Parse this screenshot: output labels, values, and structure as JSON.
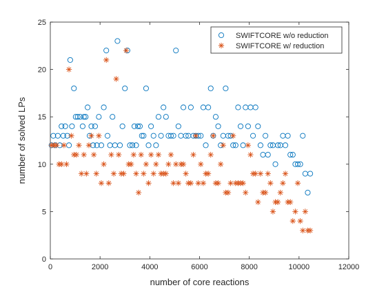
{
  "chart_data": {
    "type": "scatter",
    "title": "",
    "xlabel": "number of core reactions",
    "ylabel": "number of solved LPs",
    "xlim": [
      0,
      12000
    ],
    "ylim": [
      0,
      25
    ],
    "xticks": [
      "0",
      "2000",
      "4000",
      "6000",
      "8000",
      "10000",
      "12000"
    ],
    "yticks": [
      "0",
      "5",
      "10",
      "15",
      "20",
      "25"
    ],
    "grid": false,
    "legend_position": "top-right",
    "series": [
      {
        "name": "SWIFTCORE w/o reduction",
        "marker": "circle",
        "color": "#0072BD",
        "points": [
          [
            50,
            12
          ],
          [
            120,
            13
          ],
          [
            200,
            12
          ],
          [
            300,
            13
          ],
          [
            380,
            12
          ],
          [
            450,
            14
          ],
          [
            520,
            13
          ],
          [
            600,
            14
          ],
          [
            680,
            13
          ],
          [
            750,
            12
          ],
          [
            800,
            21
          ],
          [
            870,
            14
          ],
          [
            950,
            18
          ],
          [
            1020,
            15
          ],
          [
            1100,
            15
          ],
          [
            1200,
            15
          ],
          [
            1300,
            14
          ],
          [
            1350,
            15
          ],
          [
            1420,
            15
          ],
          [
            1500,
            16
          ],
          [
            1580,
            13
          ],
          [
            1650,
            14
          ],
          [
            1720,
            12
          ],
          [
            1800,
            14
          ],
          [
            1870,
            12
          ],
          [
            1950,
            15
          ],
          [
            2050,
            12
          ],
          [
            2150,
            16
          ],
          [
            2250,
            22
          ],
          [
            2300,
            13
          ],
          [
            2400,
            12
          ],
          [
            2500,
            15
          ],
          [
            2600,
            12
          ],
          [
            2700,
            23
          ],
          [
            2800,
            12
          ],
          [
            2900,
            14
          ],
          [
            3000,
            18
          ],
          [
            3100,
            22
          ],
          [
            3200,
            12
          ],
          [
            3300,
            12
          ],
          [
            3380,
            14
          ],
          [
            3450,
            12
          ],
          [
            3520,
            14
          ],
          [
            3600,
            14
          ],
          [
            3680,
            13
          ],
          [
            3750,
            13
          ],
          [
            3850,
            18
          ],
          [
            3950,
            12
          ],
          [
            4050,
            14
          ],
          [
            4150,
            13
          ],
          [
            4250,
            12
          ],
          [
            4350,
            15
          ],
          [
            4450,
            13
          ],
          [
            4550,
            16
          ],
          [
            4650,
            15
          ],
          [
            4750,
            13
          ],
          [
            4850,
            13
          ],
          [
            4950,
            13
          ],
          [
            5050,
            22
          ],
          [
            5150,
            14
          ],
          [
            5250,
            13
          ],
          [
            5350,
            16
          ],
          [
            5450,
            13
          ],
          [
            5550,
            13
          ],
          [
            5650,
            16
          ],
          [
            5750,
            13
          ],
          [
            5850,
            13
          ],
          [
            5950,
            13
          ],
          [
            6050,
            13
          ],
          [
            6150,
            16
          ],
          [
            6250,
            12
          ],
          [
            6350,
            16
          ],
          [
            6450,
            18
          ],
          [
            6550,
            13
          ],
          [
            6650,
            15
          ],
          [
            6750,
            14
          ],
          [
            6850,
            12
          ],
          [
            6950,
            13
          ],
          [
            7050,
            18
          ],
          [
            7150,
            13
          ],
          [
            7250,
            13
          ],
          [
            7350,
            12
          ],
          [
            7450,
            12
          ],
          [
            7550,
            16
          ],
          [
            7650,
            14
          ],
          [
            7750,
            12
          ],
          [
            7850,
            16
          ],
          [
            7950,
            14
          ],
          [
            8050,
            16
          ],
          [
            8150,
            13
          ],
          [
            8250,
            16
          ],
          [
            8350,
            14
          ],
          [
            8450,
            12
          ],
          [
            8550,
            11
          ],
          [
            8650,
            13
          ],
          [
            8750,
            11
          ],
          [
            8850,
            12
          ],
          [
            8950,
            12
          ],
          [
            9050,
            10
          ],
          [
            9150,
            12
          ],
          [
            9250,
            12
          ],
          [
            9350,
            13
          ],
          [
            9450,
            12
          ],
          [
            9550,
            13
          ],
          [
            9650,
            11
          ],
          [
            9750,
            11
          ],
          [
            9850,
            10
          ],
          [
            9950,
            10
          ],
          [
            10050,
            10
          ],
          [
            10150,
            13
          ],
          [
            10250,
            9
          ],
          [
            10350,
            7
          ],
          [
            10450,
            9
          ]
        ]
      },
      {
        "name": "SWIFTCORE w/ reduction",
        "marker": "asterisk",
        "color": "#D95319",
        "points": [
          [
            50,
            12
          ],
          [
            150,
            12
          ],
          [
            250,
            12
          ],
          [
            350,
            10
          ],
          [
            450,
            10
          ],
          [
            550,
            12
          ],
          [
            650,
            10
          ],
          [
            750,
            20
          ],
          [
            850,
            13
          ],
          [
            950,
            11
          ],
          [
            1050,
            11
          ],
          [
            1150,
            12
          ],
          [
            1250,
            9
          ],
          [
            1350,
            11
          ],
          [
            1450,
            9
          ],
          [
            1550,
            12
          ],
          [
            1650,
            13
          ],
          [
            1750,
            11
          ],
          [
            1850,
            9
          ],
          [
            1950,
            13
          ],
          [
            2050,
            8
          ],
          [
            2150,
            10
          ],
          [
            2250,
            21
          ],
          [
            2350,
            8
          ],
          [
            2450,
            11
          ],
          [
            2550,
            9
          ],
          [
            2650,
            19
          ],
          [
            2750,
            11
          ],
          [
            2850,
            9
          ],
          [
            2950,
            9
          ],
          [
            3050,
            22
          ],
          [
            3150,
            10
          ],
          [
            3250,
            10
          ],
          [
            3350,
            11
          ],
          [
            3450,
            9
          ],
          [
            3550,
            7
          ],
          [
            3650,
            11
          ],
          [
            3750,
            9
          ],
          [
            3850,
            10
          ],
          [
            3950,
            8
          ],
          [
            4050,
            11
          ],
          [
            4150,
            9
          ],
          [
            4250,
            10
          ],
          [
            4350,
            11
          ],
          [
            4450,
            9
          ],
          [
            4550,
            9
          ],
          [
            4650,
            9
          ],
          [
            4750,
            10
          ],
          [
            4850,
            11
          ],
          [
            4950,
            8
          ],
          [
            5050,
            10
          ],
          [
            5150,
            8
          ],
          [
            5250,
            10
          ],
          [
            5350,
            10
          ],
          [
            5450,
            9
          ],
          [
            5550,
            8
          ],
          [
            5650,
            8
          ],
          [
            5750,
            11
          ],
          [
            5850,
            13
          ],
          [
            5950,
            8
          ],
          [
            6050,
            10
          ],
          [
            6150,
            8
          ],
          [
            6250,
            9
          ],
          [
            6350,
            9
          ],
          [
            6450,
            11
          ],
          [
            6550,
            13
          ],
          [
            6650,
            8
          ],
          [
            6750,
            8
          ],
          [
            6850,
            10
          ],
          [
            6950,
            12
          ],
          [
            7050,
            7
          ],
          [
            7150,
            7
          ],
          [
            7250,
            8
          ],
          [
            7350,
            13
          ],
          [
            7450,
            8
          ],
          [
            7550,
            8
          ],
          [
            7650,
            8
          ],
          [
            7750,
            8
          ],
          [
            7850,
            7
          ],
          [
            7950,
            12
          ],
          [
            8050,
            11
          ],
          [
            8150,
            9
          ],
          [
            8250,
            9
          ],
          [
            8350,
            6
          ],
          [
            8450,
            9
          ],
          [
            8550,
            7
          ],
          [
            8650,
            7
          ],
          [
            8750,
            9
          ],
          [
            8850,
            8
          ],
          [
            8950,
            5
          ],
          [
            9050,
            6
          ],
          [
            9150,
            6
          ],
          [
            9250,
            7
          ],
          [
            9350,
            8
          ],
          [
            9450,
            9
          ],
          [
            9550,
            6
          ],
          [
            9650,
            6
          ],
          [
            9750,
            4
          ],
          [
            9850,
            5
          ],
          [
            9950,
            8
          ],
          [
            10050,
            4
          ],
          [
            10150,
            3
          ],
          [
            10250,
            5
          ],
          [
            10350,
            3
          ],
          [
            10450,
            3
          ]
        ]
      }
    ]
  }
}
